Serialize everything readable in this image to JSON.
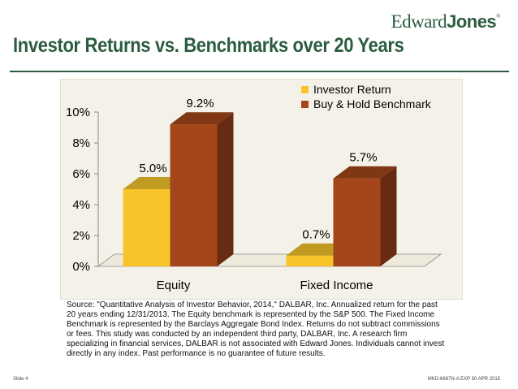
{
  "header": {
    "logo_text_a": "Edward",
    "logo_text_b": "Jones",
    "logo_reg": "®",
    "title": "Investor Returns vs. Benchmarks over 20 Years"
  },
  "chart_data": {
    "type": "bar",
    "categories": [
      "Equity",
      "Fixed Income"
    ],
    "series": [
      {
        "name": "Investor Return",
        "values": [
          5.0,
          0.7
        ],
        "labels": [
          "5.0%",
          "0.7%"
        ],
        "color": "#f7c52a"
      },
      {
        "name": "Buy & Hold Benchmark",
        "values": [
          9.2,
          5.7
        ],
        "labels": [
          "9.2%",
          "5.7%"
        ],
        "color": "#a4461a"
      }
    ],
    "ylim": [
      0,
      10
    ],
    "yticks": [
      "0%",
      "2%",
      "4%",
      "6%",
      "8%",
      "10%"
    ],
    "legend_position": "top-right",
    "grid": false,
    "style": "3d"
  },
  "source_note": "Source: \"Quantitative Analysis of Investor Behavior, 2014,\" DALBAR, Inc. Annualized return for the past 20 years ending 12/31/2013. The Equity benchmark is represented by the S&P 500. The Fixed Income Benchmark is represented by the Barclays Aggregate Bond Index. Returns do not subtract commissions or fees. This study was conducted by an independent third party, DALBAR, Inc. A research firm specializing in financial services, DALBAR is not associated with Edward Jones. Individuals cannot invest directly in any index. Past performance is no guarantee of future results.",
  "footer": {
    "slide": "Slide 4",
    "code": "MKD-6687N-A   EXP 30 APR 2015"
  },
  "colors": {
    "brand_green": "#2b5c3f",
    "investor_return": "#f7c52a",
    "benchmark": "#a4461a"
  }
}
